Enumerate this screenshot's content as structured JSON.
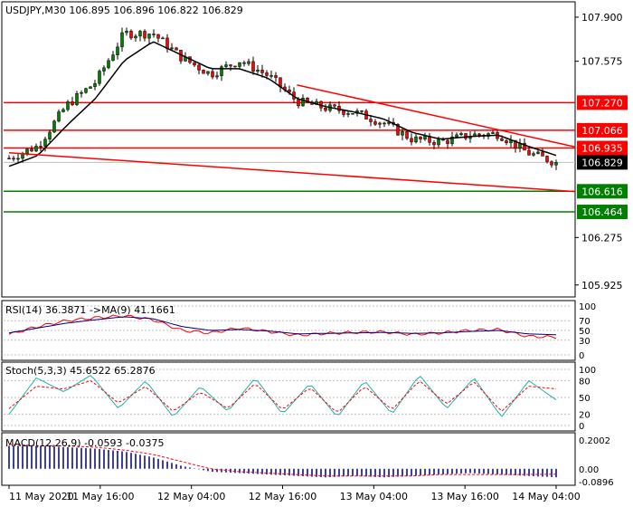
{
  "main": {
    "title": "USDJPY,M30  106.895 106.896 106.822 106.829",
    "ylim": [
      105.85,
      108.0
    ],
    "y_ticks": [
      "107.900",
      "107.575",
      "107.270",
      "107.066",
      "106.935",
      "106.829",
      "106.616",
      "106.464",
      "106.275",
      "105.925"
    ],
    "h_levels": [
      {
        "label": "107.270",
        "value": 107.27,
        "color": "#ff0000",
        "type": "resistance"
      },
      {
        "label": "107.066",
        "value": 107.066,
        "color": "#ff0000",
        "type": "resistance"
      },
      {
        "label": "106.935",
        "value": 106.935,
        "color": "#ff0000",
        "type": "resistance"
      },
      {
        "label": "106.616",
        "value": 106.616,
        "color": "#008000",
        "type": "support"
      },
      {
        "label": "106.464",
        "value": 106.464,
        "color": "#008000",
        "type": "support"
      }
    ],
    "current": {
      "label": "106.829",
      "value": 106.829
    }
  },
  "x_axis": {
    "labels": [
      "11 May 2020",
      "11 May 16:00",
      "12 May 04:00",
      "12 May 16:00",
      "13 May 04:00",
      "13 May 16:00",
      "14 May 04:00"
    ]
  },
  "rsi": {
    "title": "RSI(14) 36.3871   ->MA(9) 41.1661",
    "ticks": [
      "100",
      "70",
      "50",
      "30",
      "0"
    ]
  },
  "stoch": {
    "title": "Stoch(5,3,3) 45.6522 65.2876",
    "ticks": [
      "100",
      "80",
      "50",
      "20",
      "0"
    ]
  },
  "macd": {
    "title": "MACD(12,26,9) -0.0593 -0.0375",
    "ticks": [
      "0.2002",
      "0.00",
      "-0.0896"
    ]
  },
  "colors": {
    "bull": "#008000",
    "bear": "#ff0000",
    "ma": "#000000",
    "rsi": "#ff0000",
    "rsi_ma": "#000080",
    "stoch_main": "#20b2aa",
    "stoch_signal": "#ff0000",
    "macd_hist": "#000080",
    "macd_signal": "#ff0000"
  },
  "chart_data": [
    {
      "type": "line",
      "title": "USDJPY,M30  106.895 106.896 106.822 106.829",
      "y_scale": "linear",
      "ylim": [
        105.85,
        108.0
      ],
      "x": [
        "11 May 2020",
        "11 May 04:00",
        "11 May 08:00",
        "11 May 12:00",
        "11 May 16:00",
        "11 May 20:00",
        "12 May 00:00",
        "12 May 04:00",
        "12 May 08:00",
        "12 May 12:00",
        "12 May 16:00",
        "12 May 20:00",
        "13 May 00:00",
        "13 May 04:00",
        "13 May 08:00",
        "13 May 12:00",
        "13 May 16:00",
        "13 May 20:00",
        "14 May 00:00",
        "14 May 04:00"
      ],
      "series": [
        {
          "values": [
            106.86,
            106.95,
            107.25,
            107.42,
            107.78,
            107.78,
            107.6,
            107.48,
            107.58,
            107.47,
            107.28,
            107.23,
            107.2,
            107.12,
            107.0,
            106.98,
            107.03,
            107.04,
            106.9,
            106.83
          ]
        },
        {
          "values": [
            106.8,
            106.88,
            107.1,
            107.3,
            107.58,
            107.72,
            107.62,
            107.52,
            107.52,
            107.45,
            107.3,
            107.24,
            107.2,
            107.15,
            107.05,
            107.0,
            107.02,
            107.03,
            106.95,
            106.88
          ]
        }
      ],
      "resistance_levels": [
        107.27,
        107.066,
        106.935
      ],
      "support_levels": [
        106.616,
        106.464
      ],
      "trendlines": [
        {
          "from": {
            "x": "12 May 16:00",
            "y": 107.4
          },
          "to": {
            "x": "14 May 04:00",
            "y": 106.93
          }
        },
        {
          "from": {
            "x": "11 May 2020",
            "y": 106.9
          },
          "to": {
            "x": "14 May 04:00",
            "y": 106.6
          }
        }
      ],
      "current_price": 106.829
    },
    {
      "type": "line",
      "title": "RSI(14) 36.3871   ->MA(9) 41.1661",
      "ylim": [
        0,
        100
      ],
      "series": [
        {
          "values": [
            42,
            58,
            70,
            76,
            80,
            72,
            50,
            45,
            55,
            48,
            40,
            44,
            46,
            47,
            42,
            45,
            50,
            52,
            38,
            36.39
          ]
        },
        {
          "values": [
            45,
            55,
            65,
            72,
            78,
            74,
            58,
            50,
            52,
            49,
            43,
            44,
            45,
            46,
            44,
            45,
            48,
            50,
            43,
            41.17
          ]
        }
      ]
    },
    {
      "type": "line",
      "title": "Stoch(5,3,3) 45.6522 65.2876",
      "ylim": [
        0,
        100
      ],
      "series": [
        {
          "values": [
            20,
            85,
            60,
            90,
            30,
            80,
            15,
            70,
            25,
            85,
            20,
            75,
            15,
            80,
            20,
            90,
            30,
            85,
            15,
            80,
            45.65
          ]
        },
        {
          "values": [
            30,
            70,
            65,
            80,
            40,
            70,
            25,
            60,
            30,
            75,
            28,
            68,
            22,
            70,
            28,
            80,
            38,
            78,
            25,
            70,
            65.29
          ]
        }
      ]
    },
    {
      "type": "bar",
      "title": "MACD(12,26,9) -0.0593 -0.0375",
      "ylim": [
        -0.0896,
        0.2002
      ],
      "series": [
        {
          "values": [
            0.16,
            0.16,
            0.15,
            0.14,
            0.12,
            0.08,
            0.02,
            -0.02,
            -0.03,
            -0.04,
            -0.05,
            -0.06,
            -0.05,
            -0.06,
            -0.05,
            -0.04,
            -0.03,
            -0.04,
            -0.05,
            -0.0593
          ]
        },
        {
          "values": [
            0.17,
            0.16,
            0.16,
            0.15,
            0.13,
            0.1,
            0.05,
            0.0,
            -0.02,
            -0.03,
            -0.04,
            -0.05,
            -0.05,
            -0.05,
            -0.05,
            -0.04,
            -0.04,
            -0.04,
            -0.04,
            -0.0375
          ]
        }
      ]
    }
  ]
}
